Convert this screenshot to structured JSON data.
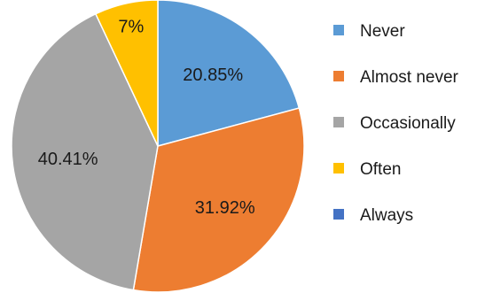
{
  "chart_data": {
    "type": "pie",
    "categories": [
      "Never",
      "Almost never",
      "Occasionally",
      "Often",
      "Always"
    ],
    "values": [
      20.85,
      31.92,
      40.41,
      7,
      0
    ],
    "labels": [
      "20.85%",
      "31.92%",
      "40.41%",
      "7%",
      ""
    ],
    "colors": [
      "#5b9bd5",
      "#ed7d31",
      "#a5a5a5",
      "#ffc000",
      "#4472c4"
    ],
    "legend": "right",
    "title": ""
  }
}
